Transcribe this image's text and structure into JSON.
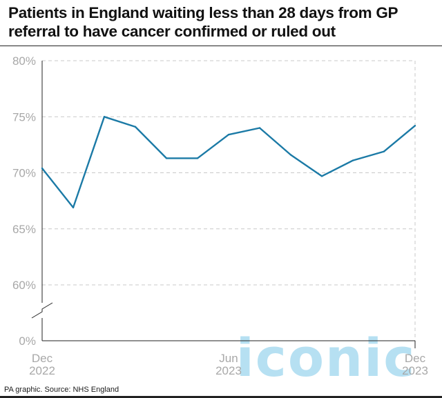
{
  "title": "Patients in England waiting less than 28 days from GP referral to have cancer confirmed or ruled out",
  "source": "PA graphic. Source: NHS England",
  "watermark": "iconic",
  "colors": {
    "line": "#1b7aa6",
    "grid": "#c8c8c8",
    "tick_text": "#a8a8a8",
    "axis": "#222222",
    "watermark": "#a9daf0"
  },
  "chart_data": {
    "type": "line",
    "title": "Patients in England waiting less than 28 days from GP referral to have cancer confirmed or ruled out",
    "x": [
      "Dec 2022",
      "Jan 2023",
      "Feb 2023",
      "Mar 2023",
      "Apr 2023",
      "May 2023",
      "Jun 2023",
      "Jul 2023",
      "Aug 2023",
      "Sep 2023",
      "Oct 2023",
      "Nov 2023",
      "Dec 2023"
    ],
    "series": [
      {
        "values": [
          70.4,
          66.9,
          75.0,
          74.1,
          71.3,
          71.3,
          73.4,
          74.0,
          71.6,
          69.7,
          71.1,
          71.9,
          74.2
        ]
      }
    ],
    "y_ticks": [
      {
        "value": 0,
        "label": "0%"
      },
      {
        "value": 60,
        "label": "60%"
      },
      {
        "value": 65,
        "label": "65%"
      },
      {
        "value": 70,
        "label": "70%"
      },
      {
        "value": 75,
        "label": "75%"
      },
      {
        "value": 80,
        "label": "80%"
      }
    ],
    "y_axis_break": true,
    "x_tick_labels": [
      {
        "index": 0,
        "month": "Dec",
        "year": "2022"
      },
      {
        "index": 6,
        "month": "Jun",
        "year": "2023"
      },
      {
        "index": 12,
        "month": "Dec",
        "year": "2023"
      }
    ],
    "xlabel": "",
    "ylabel": "",
    "grid": true,
    "legend": "none"
  }
}
